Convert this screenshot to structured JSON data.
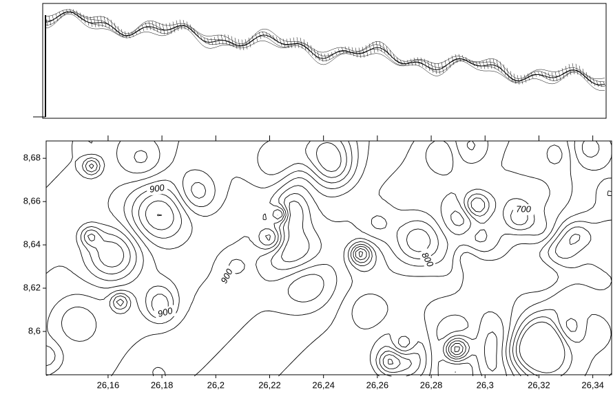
{
  "chart_data": {
    "type": "contour",
    "xlim": [
      26.137,
      26.347
    ],
    "ylim": [
      8.58,
      8.688
    ],
    "xticks": [
      {
        "value": 26.16,
        "label": "26,16"
      },
      {
        "value": 26.18,
        "label": "26,18"
      },
      {
        "value": 26.2,
        "label": "26,2"
      },
      {
        "value": 26.22,
        "label": "26,22"
      },
      {
        "value": 26.24,
        "label": "26,24"
      },
      {
        "value": 26.26,
        "label": "26,26"
      },
      {
        "value": 26.28,
        "label": "26,28"
      },
      {
        "value": 26.3,
        "label": "26,3"
      },
      {
        "value": 26.32,
        "label": "26,32"
      },
      {
        "value": 26.34,
        "label": "26,34"
      }
    ],
    "yticks": [
      {
        "value": 8.6,
        "label": "8,6"
      },
      {
        "value": 8.62,
        "label": "8,62"
      },
      {
        "value": 8.64,
        "label": "8,64"
      },
      {
        "value": 8.66,
        "label": "8,66"
      },
      {
        "value": 8.68,
        "label": "8,68"
      }
    ],
    "annotations": [
      "900",
      "900",
      "900",
      "800",
      "700"
    ],
    "color": "#000000"
  }
}
